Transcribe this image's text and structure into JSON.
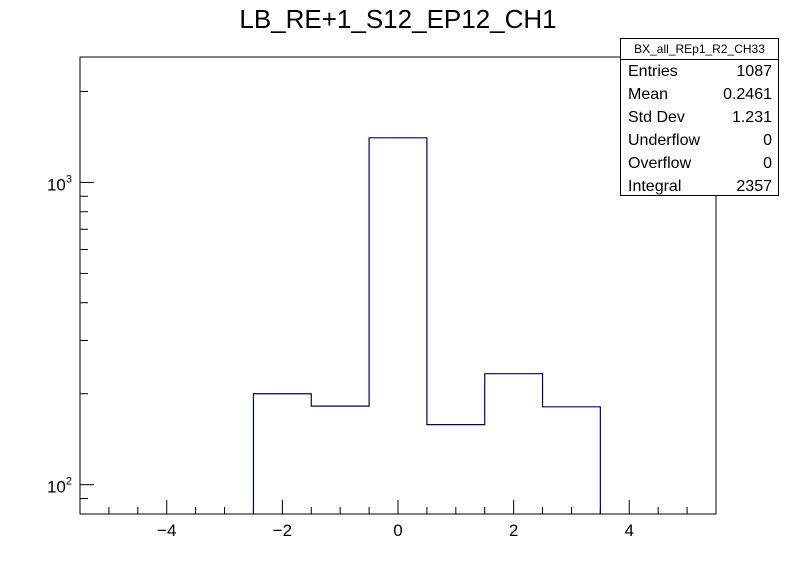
{
  "chart_data": {
    "type": "bar",
    "title": "LB_RE+1_S12_EP12_CH1",
    "xlabel": "",
    "ylabel": "",
    "xlim": [
      -5.5,
      5.5
    ],
    "ylim": [
      80,
      2600
    ],
    "y_scale": "log",
    "grid": false,
    "line_color": "#000080",
    "bins": [
      {
        "low": -2.5,
        "high": -1.5,
        "value": 200
      },
      {
        "low": -1.5,
        "high": -0.5,
        "value": 182
      },
      {
        "low": -0.5,
        "high": 0.5,
        "value": 1405
      },
      {
        "low": 0.5,
        "high": 1.5,
        "value": 158
      },
      {
        "low": 1.5,
        "high": 2.5,
        "value": 233
      },
      {
        "low": 2.5,
        "high": 3.5,
        "value": 181
      }
    ],
    "x_ticks": [
      {
        "value": -4,
        "label": "−4"
      },
      {
        "value": -2,
        "label": "−2"
      },
      {
        "value": 0,
        "label": "0"
      },
      {
        "value": 2,
        "label": "2"
      },
      {
        "value": 4,
        "label": "4"
      }
    ],
    "y_ticks": [
      {
        "value": 100,
        "base": "10",
        "exp": "2"
      },
      {
        "value": 1000,
        "base": "10",
        "exp": "3"
      }
    ]
  },
  "stats": {
    "name": "BX_all_REp1_R2_CH33",
    "rows": [
      {
        "label": "Entries",
        "value": "1087"
      },
      {
        "label": "Mean",
        "value": "0.2461"
      },
      {
        "label": "Std Dev",
        "value": "1.231"
      },
      {
        "label": "Underflow",
        "value": "0"
      },
      {
        "label": "Overflow",
        "value": "0"
      },
      {
        "label": "Integral",
        "value": "2357"
      }
    ]
  }
}
